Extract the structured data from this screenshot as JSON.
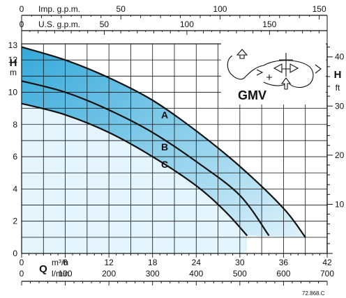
{
  "chart_data": {
    "type": "area",
    "model": "GMV",
    "left_axis": {
      "label": "H",
      "unit": "m",
      "ticks": [
        0,
        2,
        4,
        6,
        8,
        10,
        12
      ],
      "range": [
        0,
        13
      ],
      "top_label": "13"
    },
    "right_axis": {
      "label": "H",
      "unit": "ft",
      "ticks": [
        10,
        20,
        30,
        40
      ],
      "range": [
        0,
        42.65
      ]
    },
    "bottom_axis_m3h": {
      "label": "Q",
      "unit": "m³/h",
      "ticks": [
        0,
        6,
        12,
        18,
        24,
        30,
        36,
        42
      ],
      "range": [
        0,
        42
      ]
    },
    "bottom_axis_lmin": {
      "unit": "l/min",
      "ticks": [
        0,
        100,
        200,
        300,
        400,
        500,
        600,
        700
      ],
      "range": [
        0,
        700
      ]
    },
    "top_axis_imp": {
      "unit": "Imp. g.p.m.",
      "ticks": [
        0,
        50,
        100,
        150
      ],
      "range": [
        0,
        154
      ]
    },
    "top_axis_us": {
      "unit": "U.S. g.p.m.",
      "ticks": [
        0,
        50,
        100,
        150
      ],
      "range": [
        0,
        184.9
      ]
    },
    "series": [
      {
        "name": "A",
        "points": [
          [
            0,
            12.8
          ],
          [
            6,
            12.0
          ],
          [
            12,
            10.9
          ],
          [
            18,
            9.5
          ],
          [
            24,
            7.6
          ],
          [
            30,
            5.4
          ],
          [
            36,
            2.8
          ],
          [
            39,
            1.0
          ]
        ]
      },
      {
        "name": "B",
        "points": [
          [
            0,
            10.7
          ],
          [
            6,
            10.0
          ],
          [
            12,
            8.9
          ],
          [
            18,
            7.5
          ],
          [
            24,
            5.7
          ],
          [
            30,
            3.6
          ],
          [
            34,
            1.1
          ]
        ]
      },
      {
        "name": "C",
        "points": [
          [
            0,
            9.3
          ],
          [
            6,
            8.6
          ],
          [
            12,
            7.5
          ],
          [
            18,
            6.0
          ],
          [
            24,
            4.2
          ],
          [
            28,
            2.6
          ],
          [
            31,
            1.1
          ]
        ]
      }
    ],
    "grid": true,
    "footnote": "72.868.C"
  }
}
